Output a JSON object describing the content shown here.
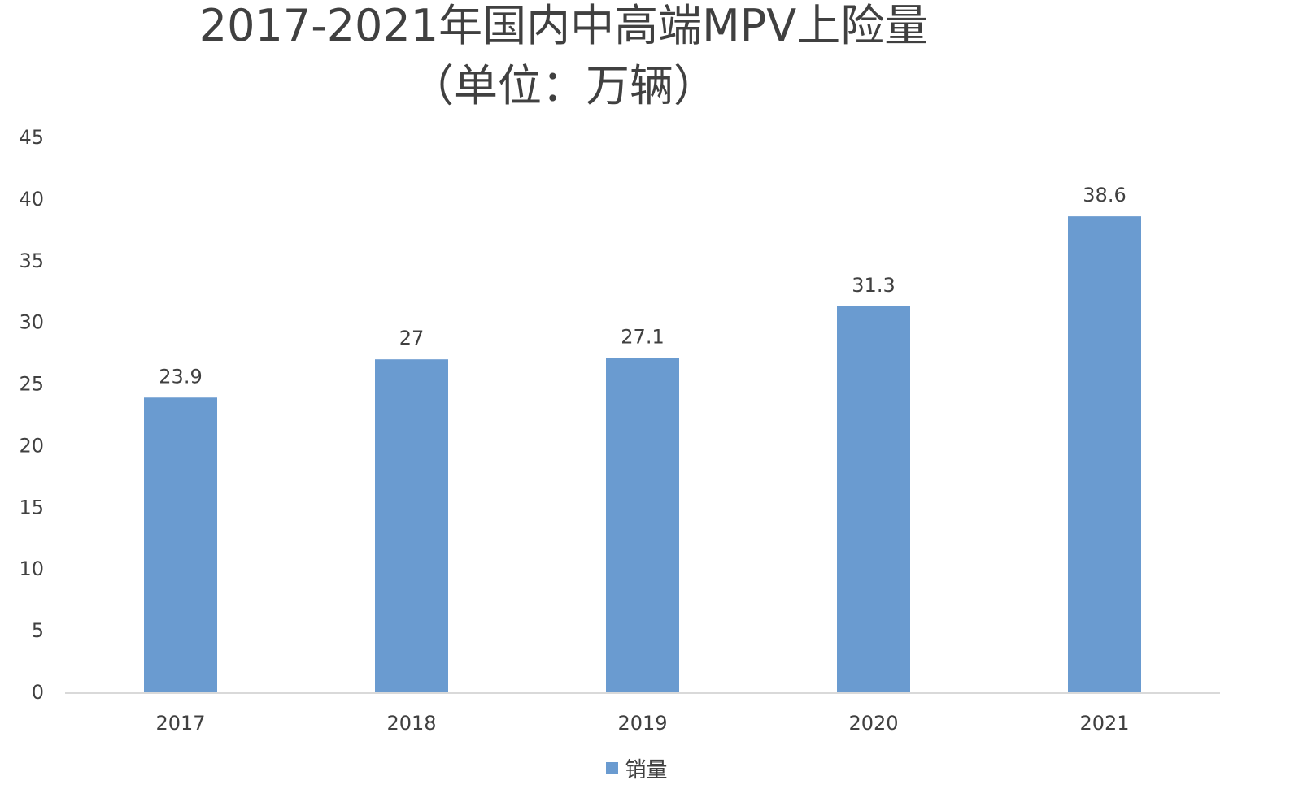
{
  "chart_data": {
    "type": "bar",
    "title": "2017-2021年国内中高端MPV上险量",
    "subtitle": "（单位：万辆）",
    "categories": [
      "2017",
      "2018",
      "2019",
      "2020",
      "2021"
    ],
    "series": [
      {
        "name": "销量",
        "values": [
          23.9,
          27,
          27.1,
          31.3,
          38.6
        ],
        "color": "#6a9bd0"
      }
    ],
    "data_labels": [
      "23.9",
      "27",
      "27.1",
      "31.3",
      "38.6"
    ],
    "xlabel": "",
    "ylabel": "",
    "ylim": [
      0,
      45
    ],
    "yticks": [
      0,
      5,
      10,
      15,
      20,
      25,
      30,
      35,
      40,
      45
    ],
    "grid": false,
    "legend_position": "bottom"
  }
}
